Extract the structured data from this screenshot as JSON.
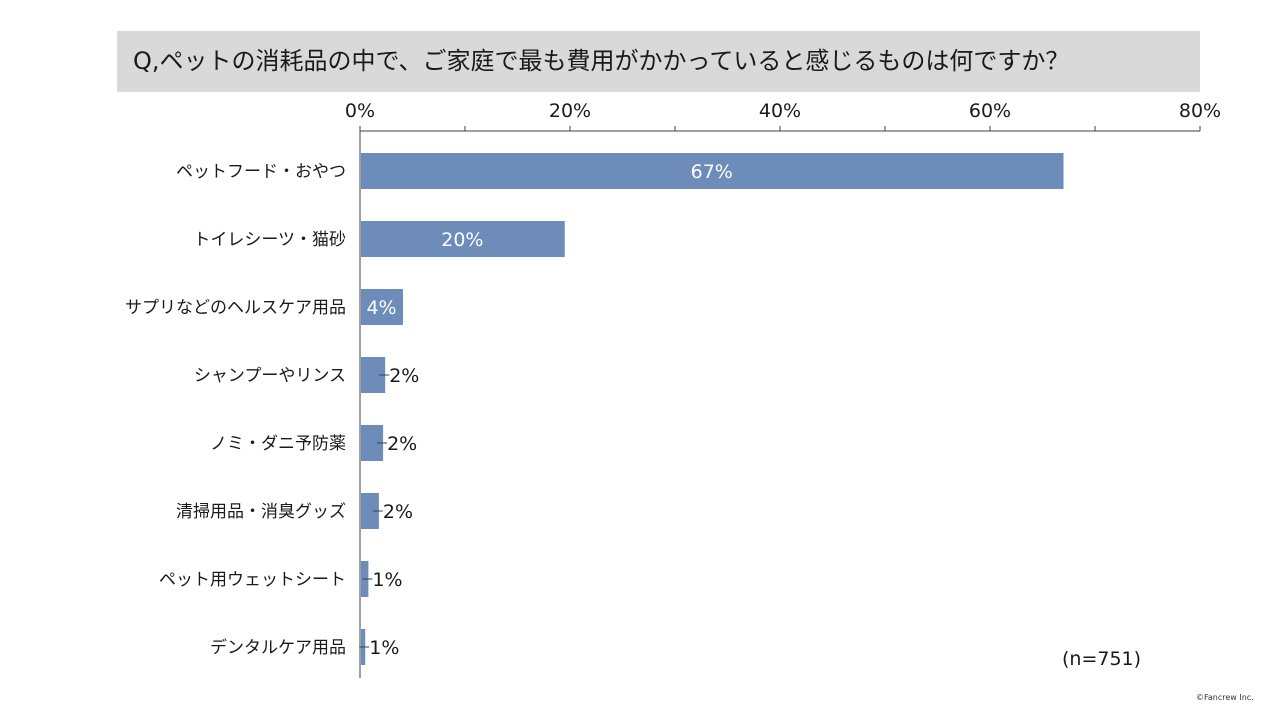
{
  "title": "Q,ペットの消耗品の中で、ご家庭で最も費用がかかっていると感じるものは何ですか？",
  "sample_size": "(n=751)",
  "copyright": "©Fancrew Inc.",
  "colors": {
    "bar": "#6e8cba",
    "title_bg": "#d9d9d9",
    "axis": "#404040"
  },
  "chart_data": {
    "type": "bar",
    "orientation": "horizontal",
    "title": "Q,ペットの消耗品の中で、ご家庭で最も費用がかかっていると感じるものは何ですか？",
    "xlim": [
      0,
      80
    ],
    "x_ticks": [
      "0%",
      "20%",
      "40%",
      "60%",
      "80%"
    ],
    "x_tick_values": [
      0,
      20,
      40,
      60,
      80
    ],
    "categories": [
      "ペットフード・おやつ",
      "トイレシーツ・猫砂",
      "サプリなどのヘルスケア用品",
      "シャンプーやリンス",
      "ノミ・ダニ予防薬",
      "清掃用品・消臭グッズ",
      "ペット用ウェットシート",
      "デンタルケア用品"
    ],
    "values": [
      67,
      19.5,
      4.1,
      2.4,
      2.2,
      1.8,
      0.8,
      0.5
    ],
    "value_labels": [
      "67%",
      "20%",
      "4%",
      "2%",
      "2%",
      "2%",
      "1%",
      "1%"
    ],
    "grid": false,
    "legend": "none"
  }
}
